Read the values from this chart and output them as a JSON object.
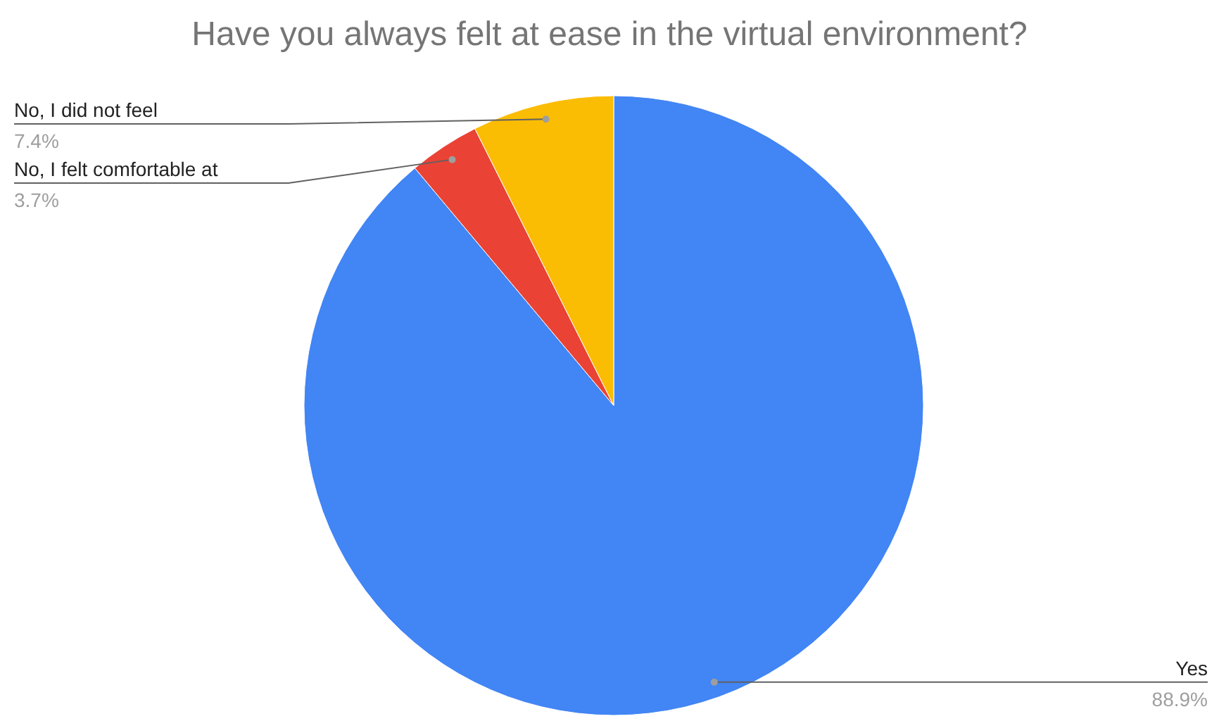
{
  "chart_data": {
    "type": "pie",
    "title": "Have you always felt at ease in the virtual environment?",
    "categories": [
      "Yes",
      "No, I felt comfortable at",
      "No, I did not feel"
    ],
    "values": [
      88.9,
      3.7,
      7.4
    ],
    "colors": [
      "#4285f4",
      "#ea4335",
      "#fbbc04"
    ],
    "value_labels": [
      "88.9%",
      "3.7%",
      "7.4%"
    ]
  }
}
